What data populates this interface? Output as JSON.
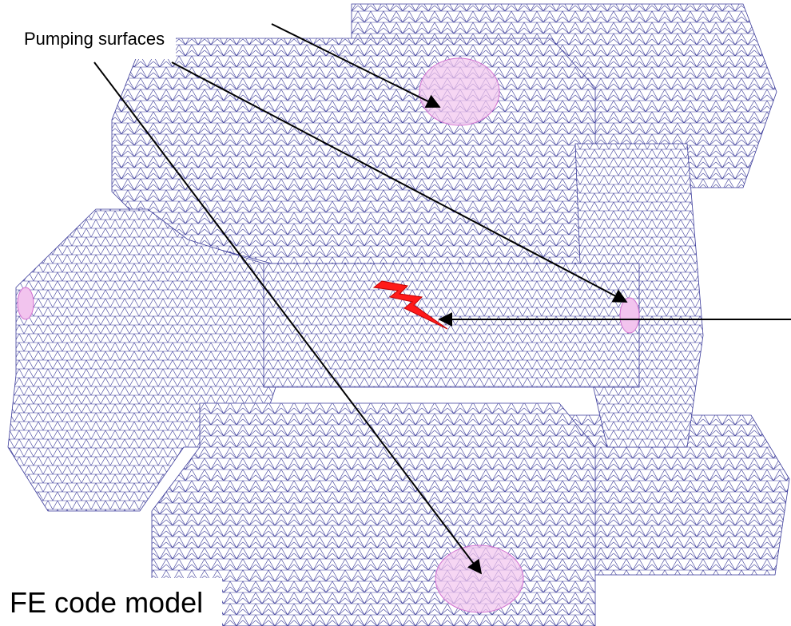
{
  "annotations": {
    "pumping_label": "Pumping surfaces",
    "model_label": "FE code model"
  }
}
